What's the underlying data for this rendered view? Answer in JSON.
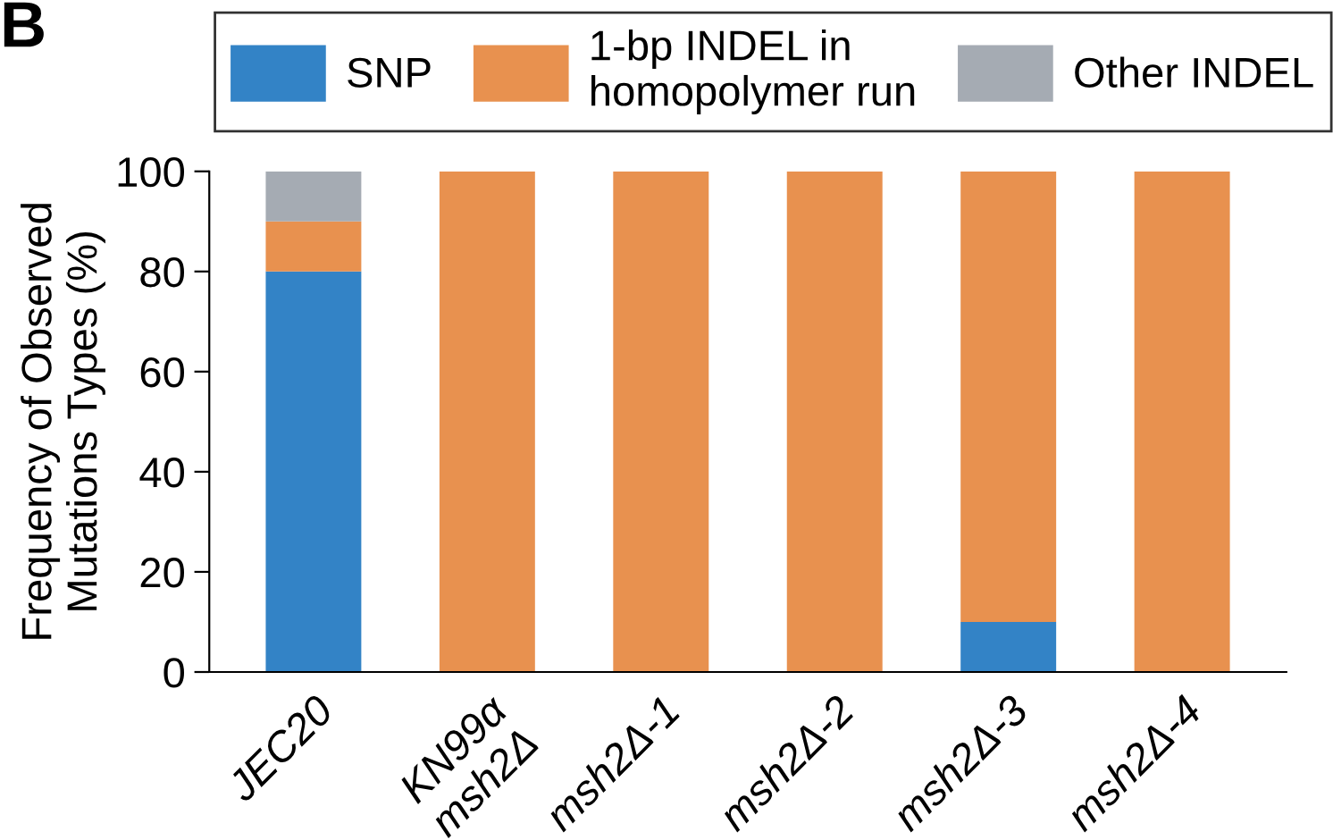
{
  "chart_data": {
    "type": "bar",
    "stacked": true,
    "categories": [
      "JEC20",
      "KN99α\nmsh2Δ",
      "msh2Δ-1",
      "msh2Δ-2",
      "msh2Δ-3",
      "msh2Δ-4"
    ],
    "series": [
      {
        "name": "SNP",
        "color": "#3383c6",
        "values": [
          80,
          0,
          0,
          0,
          10,
          0
        ]
      },
      {
        "name": "1-bp INDEL in\nhomopolymer run",
        "color": "#e8914f",
        "values": [
          10,
          100,
          100,
          100,
          90,
          100
        ]
      },
      {
        "name": "Other INDEL",
        "color": "#a5abb3",
        "values": [
          10,
          0,
          0,
          0,
          0,
          0
        ]
      }
    ],
    "ylabel": "Frequency of Observed\nMutations Types (%)",
    "ylim": [
      0,
      100
    ],
    "yticks": [
      0,
      20,
      40,
      60,
      80,
      100
    ],
    "grid": false,
    "legend": "top",
    "annotations": [
      "B"
    ]
  }
}
